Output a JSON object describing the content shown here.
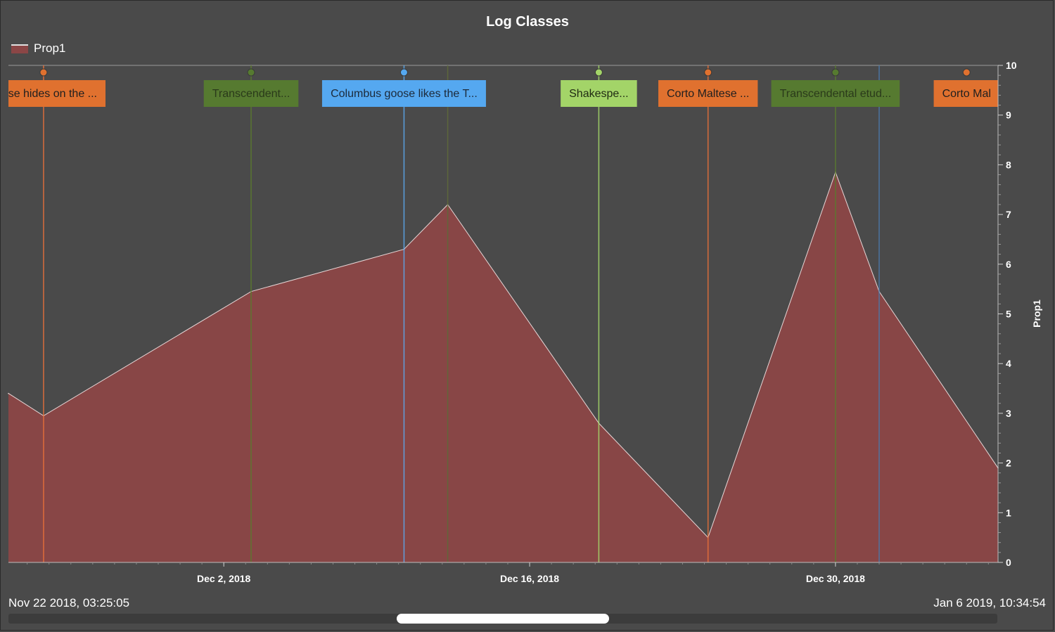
{
  "chart_data": {
    "type": "area",
    "title": "Log Classes",
    "ylabel": "Prop1",
    "ylim": [
      0,
      10
    ],
    "yticks": [
      "0",
      "1",
      "2",
      "3",
      "4",
      "5",
      "6",
      "7",
      "8",
      "9",
      "10"
    ],
    "xrange": [
      "2018-11-22T03:25:05",
      "2019-01-06T10:34:54"
    ],
    "xticks": [
      {
        "date": "2018-12-02",
        "label": "Dec 2, 2018"
      },
      {
        "date": "2018-12-16",
        "label": "Dec 16, 2018"
      },
      {
        "date": "2018-12-30",
        "label": "Dec 30, 2018"
      }
    ],
    "series": [
      {
        "name": "Prop1",
        "color": "#8b4646",
        "points": [
          {
            "x": "2018-11-22T03:25:05",
            "y": 3.4
          },
          {
            "x": "2018-11-23T18:00:00",
            "y": 2.95
          },
          {
            "x": "2018-12-03T06:00:00",
            "y": 5.45
          },
          {
            "x": "2018-12-10T06:00:00",
            "y": 6.3
          },
          {
            "x": "2018-12-12T06:00:00",
            "y": 7.2
          },
          {
            "x": "2018-12-19T04:00:00",
            "y": 2.8
          },
          {
            "x": "2018-12-24T04:00:00",
            "y": 0.5
          },
          {
            "x": "2018-12-30T00:00:00",
            "y": 7.85
          },
          {
            "x": "2019-01-01T00:00:00",
            "y": 5.45
          },
          {
            "x": "2019-01-06T10:34:54",
            "y": 1.9
          }
        ]
      }
    ],
    "log_lines": [
      {
        "date": "2018-11-23T18:00:00",
        "color": "#e8703a"
      },
      {
        "date": "2018-12-03T06:00:00",
        "color": "#5a7a2e"
      },
      {
        "date": "2018-12-10T06:00:00",
        "color": "#5aa9ee"
      },
      {
        "date": "2018-12-12T06:00:00",
        "color": "#5e6a3a"
      },
      {
        "date": "2018-12-19T04:00:00",
        "color": "#a6d96a"
      },
      {
        "date": "2018-12-24T04:00:00",
        "color": "#e8703a"
      },
      {
        "date": "2018-12-30T00:00:00",
        "color": "#5a7a2e"
      },
      {
        "date": "2019-01-01T00:00:00",
        "color": "#4a78a8"
      }
    ],
    "log_labels": [
      {
        "date": "2018-11-23T18:00:00",
        "text": "altese hides on the ...",
        "bg": "#e0712f",
        "fg": "#1f1f1f"
      },
      {
        "date": "2018-12-03T06:00:00",
        "text": "Transcendent...",
        "bg": "#567a30",
        "fg": "#2a3a1a"
      },
      {
        "date": "2018-12-10T06:00:00",
        "text": "Columbus goose likes the T...",
        "bg": "#55a8f0",
        "fg": "#1c2a3a"
      },
      {
        "date": "2018-12-19T04:00:00",
        "text": "Shakespe...",
        "bg": "#a3d468",
        "fg": "#1f2a12"
      },
      {
        "date": "2018-12-24T04:00:00",
        "text": "Corto Maltese ...",
        "bg": "#e0712f",
        "fg": "#1f1f1f"
      },
      {
        "date": "2018-12-30T00:00:00",
        "text": "Transcendental etud...",
        "bg": "#567a30",
        "fg": "#2a3a1a"
      },
      {
        "date": "2019-01-05T00:00:00",
        "text": "Corto Mal",
        "bg": "#e0712f",
        "fg": "#1f1f1f"
      }
    ]
  },
  "legend": {
    "label": "Prop1",
    "color": "#8b4646"
  },
  "range": {
    "start": "Nov 22 2018, 03:25:05",
    "end": "Jan 6 2019, 10:34:54"
  }
}
